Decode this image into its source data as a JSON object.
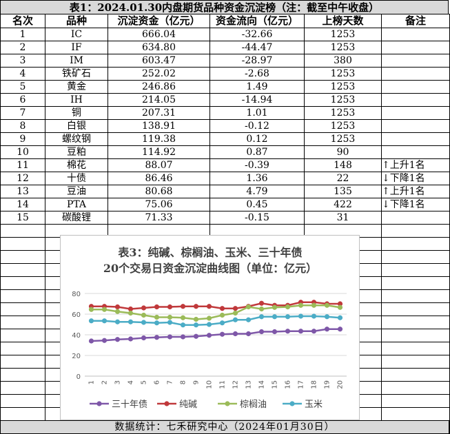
{
  "table": {
    "title": "表1：2024.01.30内盘期货品种资金沉淀榜（注：截至中午收盘）",
    "headers": [
      "名次",
      "品种",
      "沉淀资金（亿元）",
      "资金流向（亿元）",
      "上榜天数",
      "备注"
    ],
    "rows": [
      {
        "rank": "1",
        "name": "IC",
        "fund": "666.04",
        "flow": "-32.66",
        "days": "1253",
        "note": ""
      },
      {
        "rank": "2",
        "name": "IF",
        "fund": "634.80",
        "flow": "-44.47",
        "days": "1253",
        "note": ""
      },
      {
        "rank": "3",
        "name": "IM",
        "fund": "603.47",
        "flow": "-28.97",
        "days": "380",
        "note": ""
      },
      {
        "rank": "4",
        "name": "铁矿石",
        "fund": "252.02",
        "flow": "-2.68",
        "days": "1253",
        "note": ""
      },
      {
        "rank": "5",
        "name": "黄金",
        "fund": "246.86",
        "flow": "1.49",
        "days": "1253",
        "note": ""
      },
      {
        "rank": "6",
        "name": "IH",
        "fund": "214.05",
        "flow": "-14.94",
        "days": "1253",
        "note": ""
      },
      {
        "rank": "7",
        "name": "铜",
        "fund": "207.31",
        "flow": "1.01",
        "days": "1253",
        "note": ""
      },
      {
        "rank": "8",
        "name": "白银",
        "fund": "138.91",
        "flow": "-0.12",
        "days": "1253",
        "note": ""
      },
      {
        "rank": "9",
        "name": "螺纹钢",
        "fund": "119.38",
        "flow": "0.12",
        "days": "1253",
        "note": ""
      },
      {
        "rank": "10",
        "name": "豆粕",
        "fund": "114.92",
        "flow": "0.87",
        "days": "90",
        "note": ""
      },
      {
        "rank": "11",
        "name": "棉花",
        "fund": "88.07",
        "flow": "-0.39",
        "days": "148",
        "note": "↑上升1名"
      },
      {
        "rank": "12",
        "name": "十债",
        "fund": "86.46",
        "flow": "1.36",
        "days": "22",
        "note": "↓下降1名"
      },
      {
        "rank": "13",
        "name": "豆油",
        "fund": "80.68",
        "flow": "4.79",
        "days": "135",
        "note": "↑上升1名"
      },
      {
        "rank": "14",
        "name": "PTA",
        "fund": "75.06",
        "flow": "0.45",
        "days": "422",
        "note": "↓下降1名"
      },
      {
        "rank": "15",
        "name": "碳酸锂",
        "fund": "71.33",
        "flow": "-0.15",
        "days": "31",
        "note": ""
      }
    ]
  },
  "footer": "数据统计：七禾研究中心（2024年01月30日）",
  "chart_data": {
    "type": "line",
    "title": "表3：纯碱、棕榈油、玉米、三十年债",
    "subtitle": "20个交易日资金沉淀曲线图（单位：亿元）",
    "x": [
      "1",
      "2",
      "3",
      "4",
      "5",
      "6",
      "7",
      "8",
      "9",
      "10",
      "11",
      "12",
      "13",
      "14",
      "15",
      "16",
      "17",
      "18",
      "19",
      "20"
    ],
    "ylim": [
      0,
      80
    ],
    "yticks": [
      0,
      20,
      40,
      60,
      80
    ],
    "grid": true,
    "legend_position": "bottom",
    "series": [
      {
        "name": "三十年债",
        "color": "#7e57a8",
        "values": [
          34,
          34.5,
          35.5,
          36,
          37,
          37.5,
          38,
          38,
          38.5,
          39.5,
          40.5,
          41,
          41,
          43,
          43,
          43.5,
          43.5,
          43.5,
          45.5,
          45.5
        ]
      },
      {
        "name": "纯碱",
        "color": "#c0393b",
        "values": [
          67.5,
          67.5,
          67,
          65,
          66,
          67,
          67,
          67.5,
          67.5,
          67.5,
          65.5,
          65.5,
          67.5,
          70.5,
          68.5,
          68.5,
          71.5,
          71.5,
          70,
          70
        ]
      },
      {
        "name": "棕榈油",
        "color": "#9bbb59",
        "values": [
          64.5,
          64.5,
          62.5,
          61,
          59,
          57,
          57,
          56.5,
          55,
          56,
          59,
          61,
          67,
          65,
          66.5,
          67,
          68.5,
          68.5,
          68.5,
          66.5
        ]
      },
      {
        "name": "玉米",
        "color": "#4bacc6",
        "values": [
          53.5,
          53.5,
          52.5,
          52.5,
          52,
          51.5,
          52,
          49.5,
          49.5,
          50,
          51.5,
          54.5,
          54.5,
          57.5,
          57.5,
          57.5,
          58,
          58,
          57.5,
          56.5
        ]
      }
    ]
  }
}
